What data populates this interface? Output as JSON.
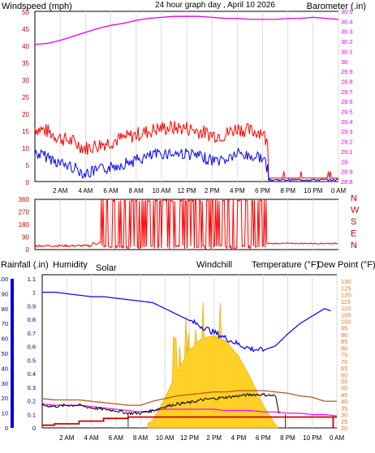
{
  "header": {
    "title": "24 hour graph day , April 10 2026",
    "title_color": "#d8d800"
  },
  "time_labels": [
    "2 AM",
    "4 AM",
    "6 AM",
    "8 AM",
    "10 AM",
    "12 PM",
    "2 PM",
    "4 PM",
    "6 PM",
    "8 PM",
    "10 PM",
    "0 AM"
  ],
  "colors": {
    "wind_gust": "#ff0000",
    "wind_avg": "#0000ff",
    "barometer": "#e600e6",
    "direction": "#ff0000",
    "humidity": "#0000ff",
    "solar": "#ffc800",
    "windchill": "#000000",
    "temperature": "#b85a20",
    "dewpoint": "#ff00ff",
    "rain": "#cc0000",
    "right_axis_temp": "#e07820"
  },
  "chart_data": [
    {
      "type": "line",
      "ylabel_left": "Windspeed (mph)",
      "ylabel_right": "Barometer (.in)",
      "y_left_ticks": [
        "0",
        "5",
        "10",
        "15",
        "20",
        "25",
        "30",
        "35",
        "40",
        "45",
        "50"
      ],
      "y_right_ticks": [
        "28.8",
        "28.9",
        "29",
        "29.1",
        "29.2",
        "29.3",
        "29.4",
        "29.5",
        "29.6",
        "29.7",
        "29.8",
        "29.9",
        "30",
        "30.1",
        "30.2",
        "30.3",
        "30.4",
        "30.5"
      ],
      "ylim_left": [
        0,
        50
      ],
      "ylim_right": [
        28.8,
        30.5
      ],
      "x_hours": [
        0,
        1,
        2,
        3,
        4,
        5,
        6,
        7,
        8,
        9,
        10,
        11,
        12,
        13,
        14,
        15,
        16,
        17,
        18,
        19,
        20,
        21,
        22,
        23,
        24
      ],
      "series": [
        {
          "name": "Windspeed (mph)",
          "values": [
            12,
            11,
            9,
            8,
            6,
            7,
            8,
            9,
            10,
            11,
            12,
            12,
            12,
            11,
            10,
            10,
            12,
            11,
            11,
            1,
            1,
            1,
            1,
            1,
            1
          ]
        },
        {
          "name": "Barometer (.in)",
          "values": [
            30.17,
            30.18,
            30.21,
            30.25,
            30.29,
            30.33,
            30.36,
            30.38,
            30.41,
            30.43,
            30.44,
            30.45,
            30.45,
            30.45,
            30.44,
            30.43,
            30.43,
            30.42,
            30.42,
            30.42,
            30.43,
            30.43,
            30.44,
            30.43,
            30.42
          ]
        }
      ]
    },
    {
      "type": "line",
      "ylabel_right": "N W S E N",
      "dir_letters": [
        "N",
        "W",
        "S",
        "E",
        "N"
      ],
      "y_left_ticks": [
        "0",
        "90",
        "180",
        "270",
        "360"
      ],
      "ylim": [
        0,
        360
      ],
      "x_hours": [
        0,
        1,
        2,
        3,
        4,
        5,
        5.5,
        6,
        6.5,
        7,
        7.5,
        8,
        8.5,
        9,
        9.5,
        10,
        10.5,
        11,
        11.5,
        12,
        12.5,
        13,
        13.5,
        14,
        14.5,
        15,
        15.5,
        16,
        16.5,
        17,
        17.5,
        18,
        19,
        20,
        21,
        22,
        23,
        24
      ],
      "series": [
        {
          "name": "Wind direction",
          "values": [
            20,
            25,
            30,
            35,
            30,
            50,
            20,
            355,
            355,
            20,
            340,
            350,
            15,
            340,
            20,
            355,
            30,
            350,
            10,
            355,
            15,
            350,
            20,
            355,
            10,
            355,
            20,
            345,
            15,
            350,
            30,
            40,
            45,
            45,
            45,
            45,
            45,
            45
          ]
        }
      ]
    },
    {
      "type": "line",
      "ylabel_left": "Rainfall (.in)",
      "ylabel_left2": "Humidity",
      "ylabel_mid": "Solar",
      "ylabel_mid2": "Windchill",
      "ylabel_right": "Temperature (°F)",
      "ylabel_right2": "Dew Point (°F)",
      "y_rain_ticks": [
        "0",
        "0.1",
        "0.2",
        "0.3",
        "0.4",
        "0.5",
        "0.6",
        "0.7",
        "0.8",
        "0.9",
        "1",
        "1.1"
      ],
      "y_hum_ticks": [
        "0",
        "10",
        "20",
        "30",
        "40",
        "50",
        "60",
        "70",
        "80",
        "90",
        "100"
      ],
      "y_temp_ticks": [
        "20",
        "25",
        "30",
        "35",
        "40",
        "45",
        "50",
        "55",
        "60",
        "65",
        "70",
        "75",
        "80",
        "85",
        "90",
        "95",
        "100",
        "105",
        "110",
        "115",
        "120",
        "125",
        "130"
      ],
      "ylim_humidity": [
        0,
        100
      ],
      "ylim_temp": [
        20,
        135
      ],
      "ylim_rain": [
        0,
        1.1
      ],
      "x_hours": [
        0,
        1,
        2,
        3,
        4,
        5,
        6,
        7,
        8,
        9,
        10,
        11,
        12,
        13,
        14,
        15,
        16,
        17,
        18,
        19,
        20,
        21,
        22,
        23,
        24
      ],
      "series": [
        {
          "name": "Humidity",
          "values": [
            91,
            91,
            90,
            89,
            88,
            88,
            87,
            86,
            85,
            84,
            80,
            76,
            72,
            68,
            64,
            60,
            56,
            53,
            52,
            55,
            63,
            70,
            75,
            80,
            77
          ]
        },
        {
          "name": "Solar",
          "values": [
            0,
            0,
            0,
            0,
            0,
            0,
            0,
            0,
            0,
            5,
            20,
            38,
            52,
            60,
            62,
            58,
            48,
            33,
            15,
            2,
            0,
            0,
            0,
            0,
            0
          ]
        },
        {
          "name": "Windchill",
          "values": [
            37,
            36,
            37,
            37,
            35,
            34,
            33,
            31,
            31,
            33,
            36,
            38,
            39,
            41,
            42,
            43,
            44,
            45,
            45,
            44,
            0,
            0,
            0,
            0,
            0
          ]
        },
        {
          "name": "Temperature (°F)",
          "values": [
            42,
            41,
            41,
            41,
            40,
            39,
            38,
            37,
            37,
            40,
            42,
            44,
            45,
            46,
            47,
            47,
            48,
            48,
            48,
            47,
            46,
            44,
            43,
            40,
            40
          ]
        },
        {
          "name": "Dew Point (°F)",
          "values": [
            38,
            37,
            37,
            37,
            36,
            35,
            34,
            33,
            32,
            33,
            34,
            34,
            34,
            34,
            34,
            33,
            33,
            33,
            32,
            32,
            31,
            31,
            30,
            30,
            29
          ]
        },
        {
          "name": "Rainfall (.in)",
          "values": [
            0.02,
            0.03,
            0.03,
            0.05,
            0.05,
            0.07,
            0.07,
            0.08,
            0.08,
            0.08,
            0.08,
            0.08,
            0.08,
            0.08,
            0.08,
            0.08,
            0.08,
            0.08,
            0.08,
            0.08,
            0.08,
            0.08,
            0.08,
            0.08,
            0.08
          ]
        }
      ]
    }
  ]
}
